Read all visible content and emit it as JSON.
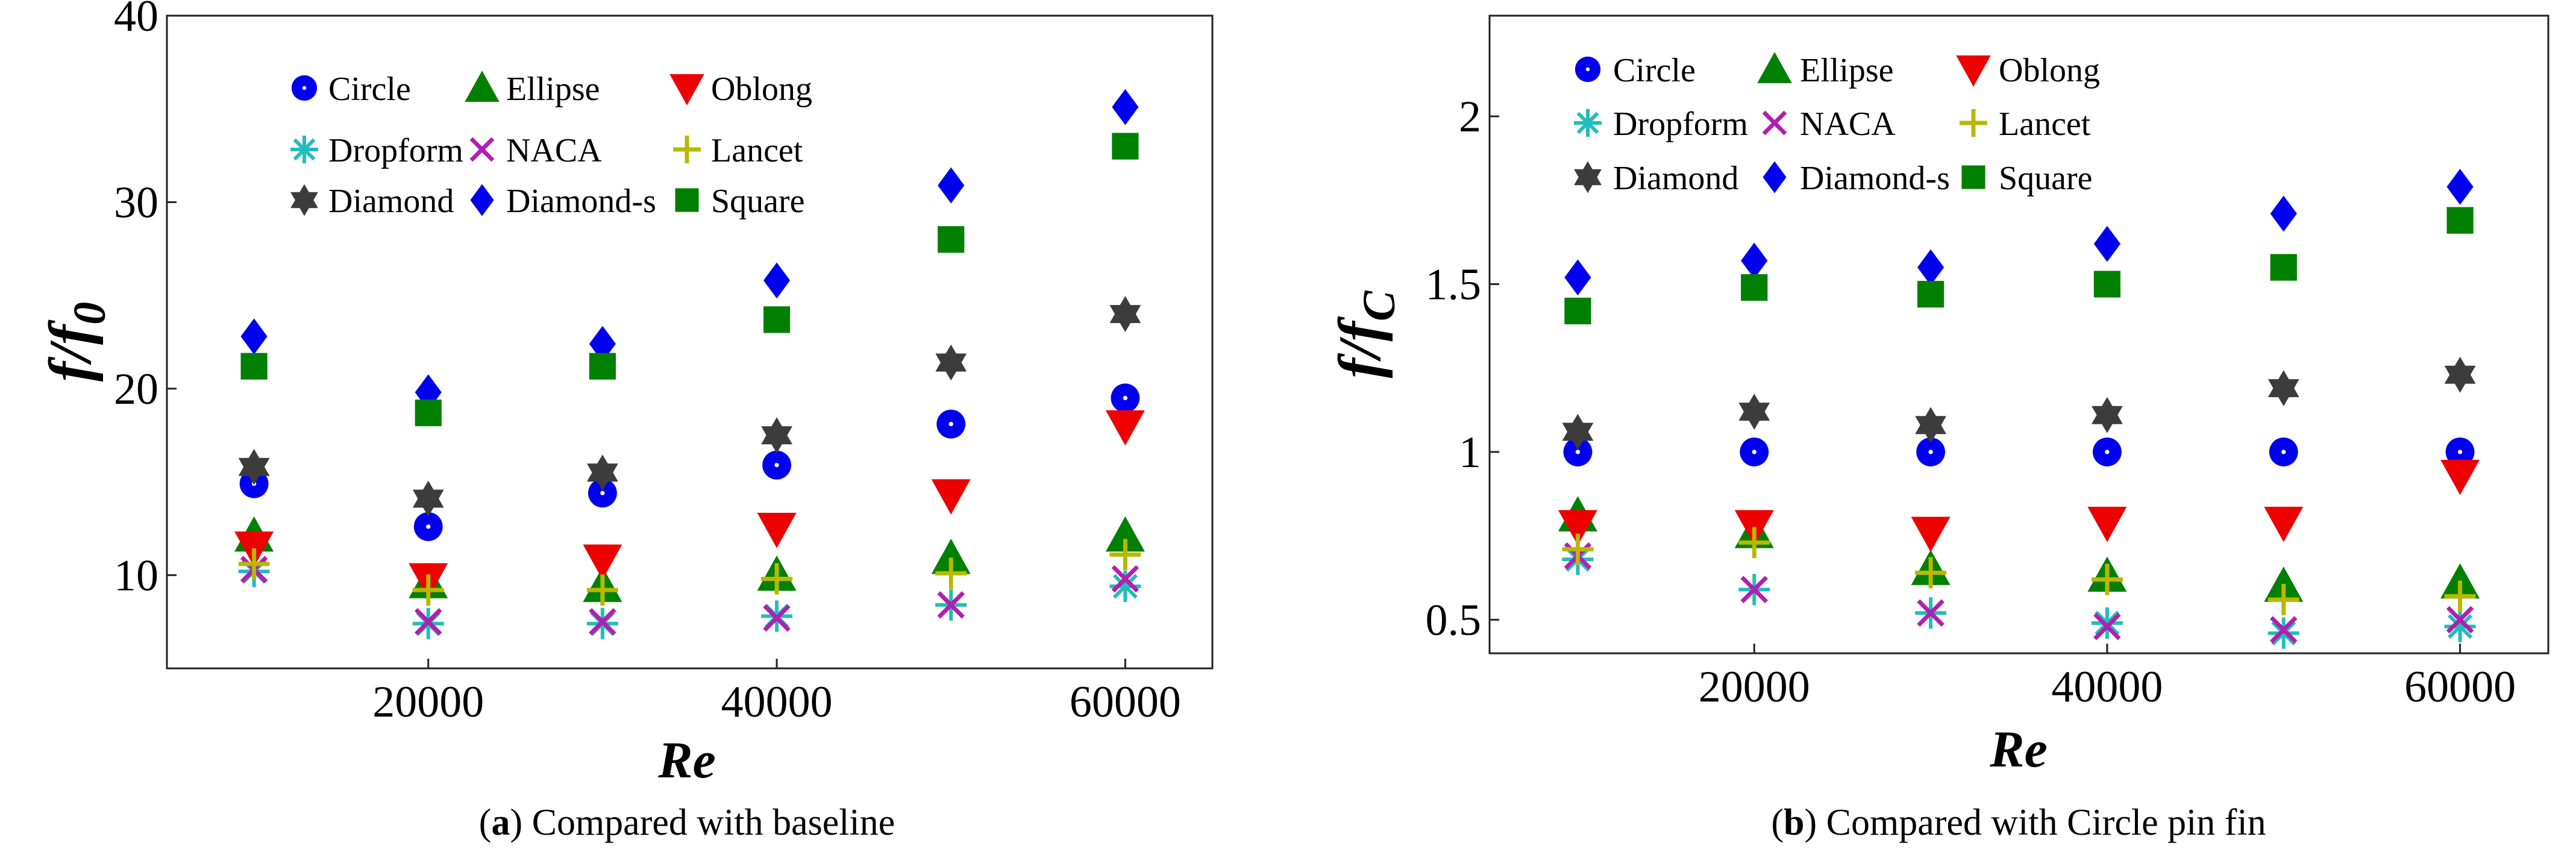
{
  "chart_data": [
    {
      "type": "scatter",
      "xlabel": "Re",
      "ylabel_main": "f/f",
      "ylabel_sub": "0",
      "caption_letter": "a",
      "caption_text": "Compared with baseline",
      "xlim": [
        5000,
        65000
      ],
      "ylim": [
        5,
        40
      ],
      "xticks": [
        20000,
        40000,
        60000
      ],
      "xtick_labels": [
        "20000",
        "40000",
        "60000"
      ],
      "yticks": [
        10,
        20,
        30,
        40
      ],
      "ytick_labels": [
        "10",
        "20",
        "30",
        "40"
      ],
      "grid": false,
      "legend_position": "top",
      "x": [
        10000,
        20000,
        30000,
        40000,
        50000,
        60000
      ],
      "series": [
        {
          "name": "Circle",
          "values": [
            14.9,
            12.6,
            14.4,
            15.9,
            18.1,
            19.5
          ]
        },
        {
          "name": "Ellipse",
          "values": [
            12.1,
            9.6,
            9.4,
            10.0,
            10.9,
            12.1
          ]
        },
        {
          "name": "Oblong",
          "values": [
            11.5,
            9.8,
            10.8,
            12.5,
            14.3,
            18.0
          ]
        },
        {
          "name": "Dropform",
          "values": [
            10.2,
            7.4,
            7.4,
            7.8,
            8.4,
            9.4
          ]
        },
        {
          "name": "NACA",
          "values": [
            10.3,
            7.5,
            7.5,
            7.7,
            8.4,
            9.8
          ]
        },
        {
          "name": "Lancet",
          "values": [
            10.6,
            9.2,
            9.2,
            9.8,
            10.1,
            11.1
          ]
        },
        {
          "name": "Diamond",
          "values": [
            15.8,
            14.1,
            15.5,
            17.5,
            21.4,
            24.0
          ]
        },
        {
          "name": "Diamond-s",
          "values": [
            22.8,
            19.8,
            22.4,
            25.8,
            30.9,
            35.1
          ]
        },
        {
          "name": "Square",
          "values": [
            21.2,
            18.7,
            21.2,
            23.7,
            28.0,
            33.0
          ]
        }
      ]
    },
    {
      "type": "scatter",
      "xlabel": "Re",
      "ylabel_main": "f/f",
      "ylabel_sub": "C",
      "caption_letter": "b",
      "caption_text": "Compared with Circle pin fin",
      "xlim": [
        5000,
        65000
      ],
      "ylim": [
        0.4,
        2.3
      ],
      "xticks": [
        20000,
        40000,
        60000
      ],
      "xtick_labels": [
        "20000",
        "40000",
        "60000"
      ],
      "yticks": [
        0.5,
        1,
        1.5,
        2
      ],
      "ytick_labels": [
        "0.5",
        "1",
        "1.5",
        "2"
      ],
      "grid": false,
      "legend_position": "top",
      "x": [
        10000,
        20000,
        30000,
        40000,
        50000,
        60000
      ],
      "series": [
        {
          "name": "Circle",
          "values": [
            1.0,
            1.0,
            1.0,
            1.0,
            1.0,
            1.0
          ]
        },
        {
          "name": "Ellipse",
          "values": [
            0.81,
            0.76,
            0.65,
            0.63,
            0.6,
            0.61
          ]
        },
        {
          "name": "Oblong",
          "values": [
            0.78,
            0.78,
            0.76,
            0.79,
            0.79,
            0.93
          ]
        },
        {
          "name": "Dropform",
          "values": [
            0.68,
            0.59,
            0.52,
            0.49,
            0.46,
            0.48
          ]
        },
        {
          "name": "NACA",
          "values": [
            0.69,
            0.59,
            0.52,
            0.48,
            0.47,
            0.5
          ]
        },
        {
          "name": "Lancet",
          "values": [
            0.71,
            0.73,
            0.64,
            0.62,
            0.56,
            0.57
          ]
        },
        {
          "name": "Diamond",
          "values": [
            1.06,
            1.12,
            1.08,
            1.11,
            1.19,
            1.23
          ]
        },
        {
          "name": "Diamond-s",
          "values": [
            1.52,
            1.57,
            1.55,
            1.62,
            1.71,
            1.79
          ]
        },
        {
          "name": "Square",
          "values": [
            1.42,
            1.49,
            1.47,
            1.5,
            1.55,
            1.69
          ]
        }
      ]
    }
  ],
  "styles": {
    "Circle": {
      "marker": "circle",
      "color": "#0000ee"
    },
    "Ellipse": {
      "marker": "triangle-up",
      "color": "#008000"
    },
    "Oblong": {
      "marker": "triangle-down",
      "color": "#ee0000"
    },
    "Dropform": {
      "marker": "asterisk",
      "color": "#22bcbc"
    },
    "NACA": {
      "marker": "x-cross",
      "color": "#b020b0"
    },
    "Lancet": {
      "marker": "plus",
      "color": "#b8b800"
    },
    "Diamond": {
      "marker": "hexagram",
      "color": "#3c3c3c"
    },
    "Diamond-s": {
      "marker": "diamond",
      "color": "#0000ee"
    },
    "Square": {
      "marker": "square",
      "color": "#008000"
    }
  }
}
